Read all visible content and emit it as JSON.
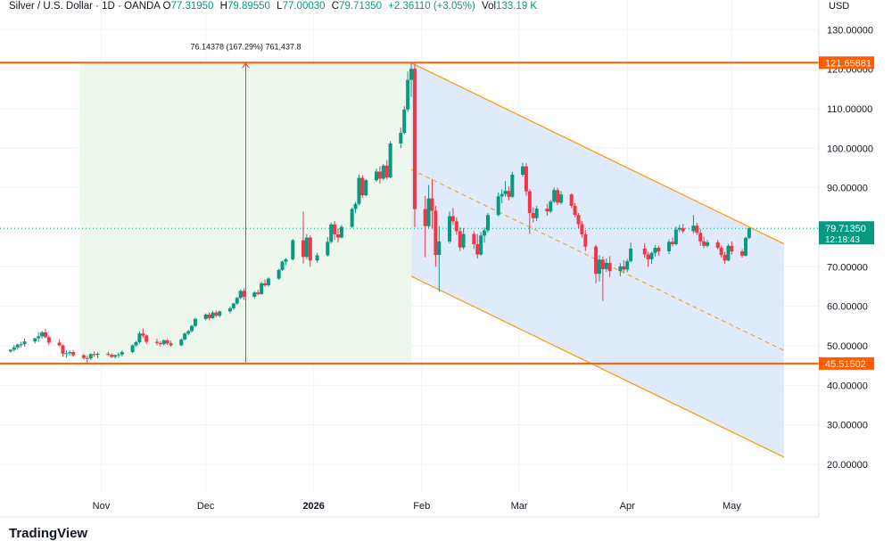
{
  "header": {
    "symbol": "Silver / U.S. Dollar · 1D · OANDA",
    "open_label": "O",
    "open_value": "77.31950",
    "high_label": "H",
    "high_value": "79.89550",
    "low_label": "L",
    "low_value": "77.00030",
    "close_label": "C",
    "close_value": "79.71350",
    "change_value": "+2.36110 (+3.05%)",
    "vol_label": "Vol",
    "vol_value": "133.19 K",
    "currency": "USD"
  },
  "watermark": "TradingView",
  "colors": {
    "up": "#089981",
    "down": "#f23645",
    "level_line": "#ff5d00",
    "channel_line": "#ff9800",
    "channel_fill": "#dbe8fb",
    "measure_fill": "#eef7ee",
    "measure_line": "#f23645",
    "price_tag": "#089981"
  },
  "chart_data": {
    "type": "candlestick",
    "instrument": "Silver / U.S. Dollar",
    "interval": "1D",
    "y_axis": {
      "ticks": [
        "130.00000",
        "120.00000",
        "110.00000",
        "100.00000",
        "90.00000",
        "80.00000",
        "70.00000",
        "60.00000",
        "50.00000",
        "40.00000",
        "30.00000",
        "20.00000"
      ],
      "range": [
        13,
        133
      ]
    },
    "x_axis": {
      "ticks": [
        {
          "label": "Nov",
          "date": "2025-11-01"
        },
        {
          "label": "Dec",
          "date": "2025-12-01"
        },
        {
          "label": "2026",
          "date": "2026-01-01",
          "bold": true
        },
        {
          "label": "Feb",
          "date": "2026-02-01"
        },
        {
          "label": "Mar",
          "date": "2026-03-01"
        },
        {
          "label": "Apr",
          "date": "2026-04-01"
        },
        {
          "label": "May",
          "date": "2026-05-01"
        }
      ],
      "range": [
        "2025-10-05",
        "2026-05-26"
      ]
    },
    "candles": [
      [
        "2025-10-06",
        48.6,
        49.1,
        48.2,
        49.0
      ],
      [
        "2025-10-07",
        49.0,
        50.2,
        48.5,
        49.6
      ],
      [
        "2025-10-08",
        49.6,
        50.6,
        49.0,
        50.3
      ],
      [
        "2025-10-09",
        50.3,
        51.0,
        49.6,
        50.4
      ],
      [
        "2025-10-10",
        50.4,
        51.8,
        49.8,
        51.1
      ],
      [
        "2025-10-13",
        51.1,
        52.0,
        50.6,
        51.9
      ],
      [
        "2025-10-14",
        51.9,
        53.5,
        51.0,
        52.4
      ],
      [
        "2025-10-15",
        52.4,
        53.8,
        51.8,
        53.4
      ],
      [
        "2025-10-16",
        53.4,
        54.3,
        51.9,
        52.2
      ],
      [
        "2025-10-17",
        52.2,
        52.6,
        50.2,
        50.8
      ],
      [
        "2025-10-20",
        50.8,
        51.6,
        49.9,
        50.1
      ],
      [
        "2025-10-21",
        50.1,
        50.3,
        47.2,
        48.0
      ],
      [
        "2025-10-22",
        48.0,
        48.9,
        47.0,
        48.1
      ],
      [
        "2025-10-23",
        48.1,
        48.8,
        47.5,
        48.4
      ],
      [
        "2025-10-24",
        48.4,
        48.9,
        47.3,
        47.6
      ],
      [
        "2025-10-27",
        47.6,
        47.9,
        46.5,
        46.9
      ],
      [
        "2025-10-28",
        46.9,
        47.5,
        45.7,
        46.8
      ],
      [
        "2025-10-29",
        46.8,
        48.1,
        46.4,
        47.9
      ],
      [
        "2025-10-30",
        47.9,
        48.6,
        47.2,
        47.7
      ],
      [
        "2025-10-31",
        47.7,
        48.3,
        46.9,
        48.0
      ],
      [
        "2025-11-03",
        48.0,
        48.5,
        47.4,
        47.7
      ],
      [
        "2025-11-04",
        47.7,
        48.1,
        46.9,
        47.2
      ],
      [
        "2025-11-05",
        47.2,
        47.8,
        46.8,
        47.6
      ],
      [
        "2025-11-06",
        47.6,
        48.3,
        47.0,
        47.8
      ],
      [
        "2025-11-07",
        47.8,
        48.8,
        47.3,
        48.4
      ],
      [
        "2025-11-10",
        48.4,
        50.4,
        48.1,
        50.1
      ],
      [
        "2025-11-11",
        50.1,
        51.2,
        49.8,
        50.9
      ],
      [
        "2025-11-12",
        50.9,
        53.6,
        50.5,
        53.1
      ],
      [
        "2025-11-13",
        53.1,
        54.4,
        52.0,
        52.6
      ],
      [
        "2025-11-14",
        52.6,
        52.9,
        50.4,
        51.0
      ],
      [
        "2025-11-17",
        51.0,
        51.8,
        50.1,
        50.7
      ],
      [
        "2025-11-18",
        50.7,
        51.2,
        49.8,
        50.4
      ],
      [
        "2025-11-19",
        50.4,
        51.6,
        50.0,
        51.4
      ],
      [
        "2025-11-20",
        51.4,
        51.7,
        50.2,
        50.6
      ],
      [
        "2025-11-21",
        50.6,
        51.3,
        49.8,
        50.1
      ],
      [
        "2025-11-24",
        50.1,
        51.9,
        49.9,
        51.6
      ],
      [
        "2025-11-25",
        51.6,
        53.4,
        51.3,
        53.1
      ],
      [
        "2025-11-26",
        53.1,
        54.0,
        52.7,
        53.7
      ],
      [
        "2025-11-27",
        53.7,
        55.3,
        53.4,
        55.0
      ],
      [
        "2025-11-28",
        55.0,
        57.1,
        54.8,
        56.8
      ],
      [
        "2025-12-01",
        56.8,
        58.2,
        56.4,
        57.9
      ],
      [
        "2025-12-02",
        57.9,
        58.4,
        56.5,
        57.0
      ],
      [
        "2025-12-03",
        57.0,
        58.8,
        56.8,
        58.4
      ],
      [
        "2025-12-04",
        58.4,
        58.9,
        57.3,
        57.6
      ],
      [
        "2025-12-05",
        57.6,
        58.9,
        57.2,
        58.7
      ],
      [
        "2025-12-08",
        58.7,
        59.9,
        58.2,
        59.5
      ],
      [
        "2025-12-09",
        59.5,
        60.9,
        59.1,
        60.7
      ],
      [
        "2025-12-10",
        60.7,
        62.4,
        60.3,
        62.1
      ],
      [
        "2025-12-11",
        62.1,
        64.3,
        61.8,
        63.9
      ],
      [
        "2025-12-12",
        63.9,
        64.6,
        61.6,
        62.4
      ],
      [
        "2025-12-15",
        62.4,
        63.8,
        61.9,
        63.5
      ],
      [
        "2025-12-16",
        63.5,
        64.2,
        62.8,
        63.1
      ],
      [
        "2025-12-17",
        63.1,
        66.2,
        62.9,
        65.8
      ],
      [
        "2025-12-18",
        65.8,
        66.8,
        64.9,
        65.3
      ],
      [
        "2025-12-19",
        65.3,
        67.3,
        65.0,
        67.0
      ],
      [
        "2025-12-22",
        67.0,
        69.5,
        66.7,
        69.2
      ],
      [
        "2025-12-23",
        69.2,
        71.6,
        68.9,
        71.3
      ],
      [
        "2025-12-24",
        71.3,
        72.2,
        70.4,
        71.9
      ],
      [
        "2025-12-26",
        71.9,
        77.0,
        71.6,
        76.7
      ],
      [
        "2025-12-29",
        76.7,
        84.0,
        70.8,
        72.5
      ],
      [
        "2025-12-30",
        72.5,
        78.3,
        71.9,
        77.4
      ],
      [
        "2025-12-31",
        77.4,
        78.0,
        70.0,
        71.6
      ],
      [
        "2026-01-02",
        71.6,
        73.5,
        71.0,
        72.9
      ],
      [
        "2026-01-05",
        72.9,
        77.5,
        72.6,
        76.3
      ],
      [
        "2026-01-06",
        76.3,
        81.2,
        75.9,
        80.7
      ],
      [
        "2026-01-07",
        80.7,
        81.6,
        76.8,
        78.2
      ],
      [
        "2026-01-08",
        78.2,
        79.7,
        76.1,
        77.4
      ],
      [
        "2026-01-09",
        77.4,
        80.6,
        77.2,
        80.1
      ],
      [
        "2026-01-12",
        80.1,
        85.0,
        79.8,
        84.6
      ],
      [
        "2026-01-13",
        84.6,
        86.4,
        83.6,
        85.9
      ],
      [
        "2026-01-14",
        85.9,
        93.4,
        85.5,
        92.5
      ],
      [
        "2026-01-15",
        92.5,
        93.2,
        87.5,
        88.1
      ],
      [
        "2026-01-16",
        88.1,
        92.2,
        87.8,
        91.9
      ],
      [
        "2026-01-19",
        91.9,
        94.8,
        91.5,
        94.1
      ],
      [
        "2026-01-20",
        94.1,
        95.4,
        91.0,
        92.3
      ],
      [
        "2026-01-21",
        92.3,
        96.0,
        91.9,
        95.6
      ],
      [
        "2026-01-22",
        95.6,
        97.0,
        92.1,
        92.6
      ],
      [
        "2026-01-23",
        92.6,
        101.8,
        92.4,
        101.2
      ],
      [
        "2026-01-26",
        101.2,
        105.2,
        100.0,
        103.9
      ],
      [
        "2026-01-27",
        103.9,
        110.6,
        103.5,
        109.8
      ],
      [
        "2026-01-28",
        109.8,
        119.4,
        109.2,
        117.3
      ],
      [
        "2026-01-29",
        117.3,
        121.6,
        113.0,
        120.1
      ],
      [
        "2026-01-30",
        120.1,
        121.2,
        80.0,
        84.6
      ],
      [
        "2026-02-02",
        84.6,
        87.9,
        72.4,
        80.3
      ],
      [
        "2026-02-03",
        80.3,
        90.7,
        79.8,
        87.3
      ],
      [
        "2026-02-04",
        87.3,
        92.2,
        79.6,
        84.2
      ],
      [
        "2026-02-05",
        84.2,
        85.4,
        70.0,
        73.0
      ],
      [
        "2026-02-06",
        73.0,
        80.3,
        63.7,
        76.4
      ],
      [
        "2026-02-09",
        76.4,
        84.0,
        75.9,
        82.8
      ],
      [
        "2026-02-10",
        82.8,
        84.9,
        80.6,
        81.5
      ],
      [
        "2026-02-11",
        81.5,
        82.5,
        78.1,
        79.0
      ],
      [
        "2026-02-12",
        79.0,
        79.9,
        74.0,
        74.9
      ],
      [
        "2026-02-13",
        74.9,
        79.8,
        74.4,
        78.3
      ],
      [
        "2026-02-16",
        78.3,
        79.0,
        74.5,
        75.7
      ],
      [
        "2026-02-17",
        75.7,
        78.3,
        72.1,
        73.1
      ],
      [
        "2026-02-18",
        73.1,
        78.8,
        72.8,
        77.9
      ],
      [
        "2026-02-19",
        77.9,
        79.9,
        76.1,
        79.2
      ],
      [
        "2026-02-20",
        79.2,
        83.6,
        78.6,
        83.1
      ],
      [
        "2026-02-23",
        83.1,
        88.8,
        82.7,
        87.8
      ],
      [
        "2026-02-24",
        87.8,
        89.6,
        86.1,
        88.4
      ],
      [
        "2026-02-25",
        88.4,
        91.7,
        87.8,
        89.2
      ],
      [
        "2026-02-26",
        89.2,
        90.4,
        86.8,
        87.7
      ],
      [
        "2026-02-27",
        87.7,
        94.0,
        87.4,
        93.3
      ],
      [
        "2026-03-02",
        93.3,
        96.3,
        92.8,
        95.4
      ],
      [
        "2026-03-03",
        95.4,
        96.2,
        88.0,
        89.1
      ],
      [
        "2026-03-04",
        89.1,
        89.6,
        78.3,
        83.6
      ],
      [
        "2026-03-05",
        83.6,
        85.1,
        81.2,
        82.3
      ],
      [
        "2026-03-06",
        82.3,
        85.4,
        81.6,
        84.7
      ],
      [
        "2026-03-09",
        84.7,
        85.9,
        82.9,
        84.0
      ],
      [
        "2026-03-10",
        84.0,
        86.9,
        83.6,
        86.5
      ],
      [
        "2026-03-11",
        86.5,
        90.1,
        86.1,
        89.4
      ],
      [
        "2026-03-12",
        89.4,
        90.0,
        85.6,
        86.2
      ],
      [
        "2026-03-13",
        86.2,
        89.1,
        85.8,
        88.3
      ],
      [
        "2026-03-16",
        88.3,
        88.6,
        84.9,
        85.4
      ],
      [
        "2026-03-17",
        85.4,
        86.1,
        82.6,
        83.1
      ],
      [
        "2026-03-18",
        83.1,
        83.6,
        79.7,
        80.8
      ],
      [
        "2026-03-19",
        80.8,
        81.5,
        77.4,
        78.2
      ],
      [
        "2026-03-20",
        78.2,
        79.3,
        74.0,
        75.1
      ],
      [
        "2026-03-23",
        75.1,
        75.6,
        65.8,
        68.2
      ],
      [
        "2026-03-24",
        68.2,
        72.9,
        66.3,
        71.8
      ],
      [
        "2026-03-25",
        71.8,
        72.6,
        61.3,
        69.4
      ],
      [
        "2026-03-26",
        69.4,
        72.1,
        68.7,
        71.0
      ],
      [
        "2026-03-27",
        71.0,
        72.7,
        67.4,
        68.9
      ],
      [
        "2026-03-30",
        68.9,
        70.9,
        67.6,
        70.1
      ],
      [
        "2026-03-31",
        70.1,
        71.7,
        68.5,
        69.3
      ],
      [
        "2026-04-01",
        69.3,
        72.0,
        68.6,
        71.4
      ],
      [
        "2026-04-02",
        71.4,
        76.1,
        71.1,
        74.6
      ],
      [
        "2026-04-06",
        74.6,
        76.0,
        72.3,
        73.1
      ],
      [
        "2026-04-07",
        73.1,
        73.8,
        70.0,
        71.9
      ],
      [
        "2026-04-08",
        71.9,
        73.8,
        70.7,
        73.5
      ],
      [
        "2026-04-09",
        73.5,
        75.4,
        72.6,
        74.8
      ],
      [
        "2026-04-10",
        74.8,
        75.3,
        72.8,
        73.9
      ],
      [
        "2026-04-13",
        73.9,
        76.9,
        73.2,
        76.3
      ],
      [
        "2026-04-14",
        76.3,
        77.4,
        75.1,
        75.7
      ],
      [
        "2026-04-15",
        75.7,
        80.2,
        75.4,
        79.4
      ],
      [
        "2026-04-16",
        79.4,
        80.6,
        78.8,
        79.8
      ],
      [
        "2026-04-17",
        79.8,
        80.9,
        78.5,
        79.0
      ],
      [
        "2026-04-20",
        79.0,
        83.1,
        78.4,
        80.4
      ],
      [
        "2026-04-21",
        80.4,
        81.1,
        78.0,
        78.6
      ],
      [
        "2026-04-22",
        78.6,
        79.5,
        75.3,
        76.4
      ],
      [
        "2026-04-23",
        76.4,
        77.6,
        74.7,
        75.3
      ],
      [
        "2026-04-24",
        75.3,
        76.8,
        74.9,
        76.2
      ],
      [
        "2026-04-27",
        76.2,
        76.8,
        74.4,
        74.8
      ],
      [
        "2026-04-28",
        74.8,
        75.3,
        72.3,
        73.0
      ],
      [
        "2026-04-29",
        73.0,
        73.7,
        70.7,
        71.6
      ],
      [
        "2026-04-30",
        71.6,
        75.8,
        71.4,
        75.3
      ],
      [
        "2026-05-01",
        75.3,
        76.4,
        73.1,
        73.9
      ],
      [
        "2026-05-04",
        73.9,
        74.5,
        72.3,
        72.8
      ],
      [
        "2026-05-05",
        72.8,
        77.6,
        72.6,
        77.3
      ],
      [
        "2026-05-06",
        77.3195,
        79.8955,
        77.0003,
        79.7135
      ]
    ],
    "drawings": {
      "horizontal_levels": [
        {
          "value": 121.65881,
          "label": "121.65881"
        },
        {
          "value": 45.51502,
          "label": "45.51502"
        }
      ],
      "channel": {
        "upper": [
          [
            "2026-01-29",
            121.6
          ],
          [
            "2026-05-16",
            75.8
          ]
        ],
        "lower": [
          [
            "2026-01-29",
            67.6
          ],
          [
            "2026-05-16",
            21.8
          ]
        ],
        "midline_dashed": true
      },
      "measure": {
        "from": [
          "2025-10-26",
          45.51502
        ],
        "to": [
          "2026-01-29",
          121.65881
        ],
        "label": "76.14378 (167.29%) 761,437.8"
      }
    },
    "last_price": {
      "value": 79.7135,
      "label": "79.71350",
      "countdown": "12:18:43"
    }
  }
}
